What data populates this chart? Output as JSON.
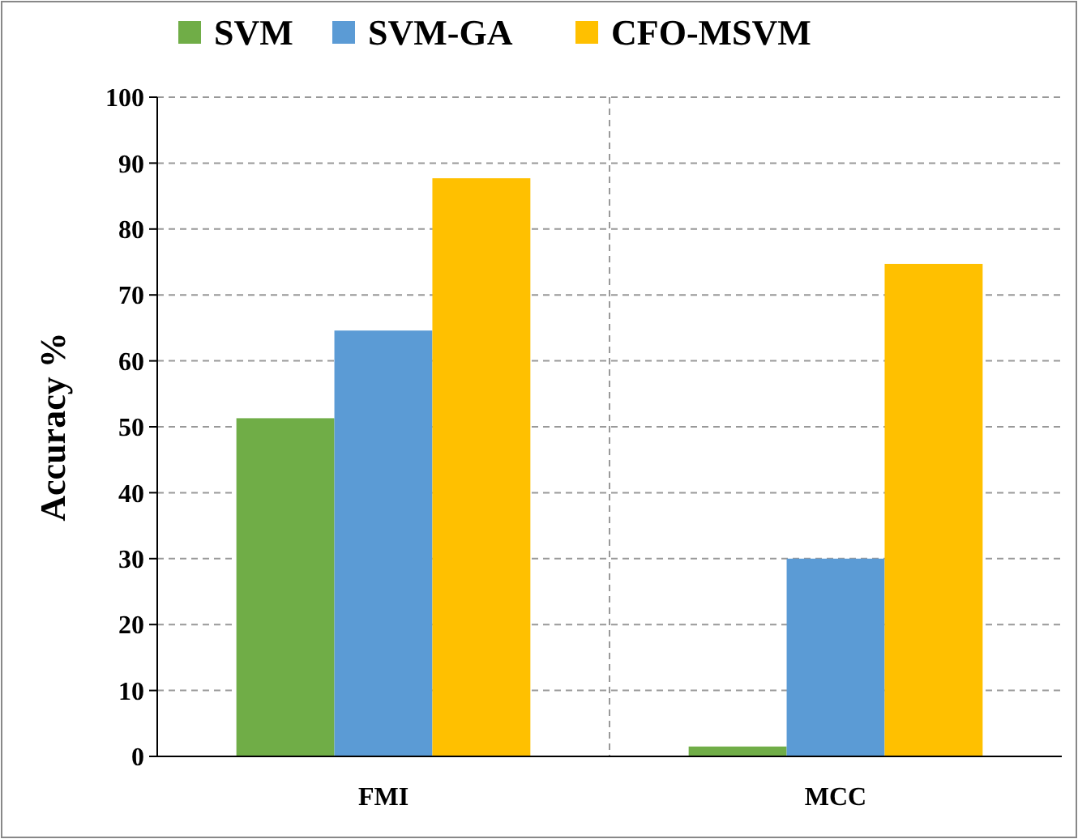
{
  "chart_data": {
    "type": "bar",
    "ylabel": "Accuracy %",
    "categories": [
      "FMI",
      "MCC"
    ],
    "series": [
      {
        "name": "SVM",
        "color": "#70ad47",
        "values": [
          51.3,
          1.5
        ]
      },
      {
        "name": "SVM-GA",
        "color": "#5b9bd5",
        "values": [
          64.6,
          30
        ]
      },
      {
        "name": "CFO-MSVM",
        "color": "#ffc000",
        "values": [
          87.7,
          74.7
        ]
      }
    ],
    "ylim": [
      0,
      100
    ],
    "yticks": [
      0,
      10,
      20,
      30,
      40,
      50,
      60,
      70,
      80,
      90,
      100
    ],
    "grid": true,
    "legend": "top"
  }
}
